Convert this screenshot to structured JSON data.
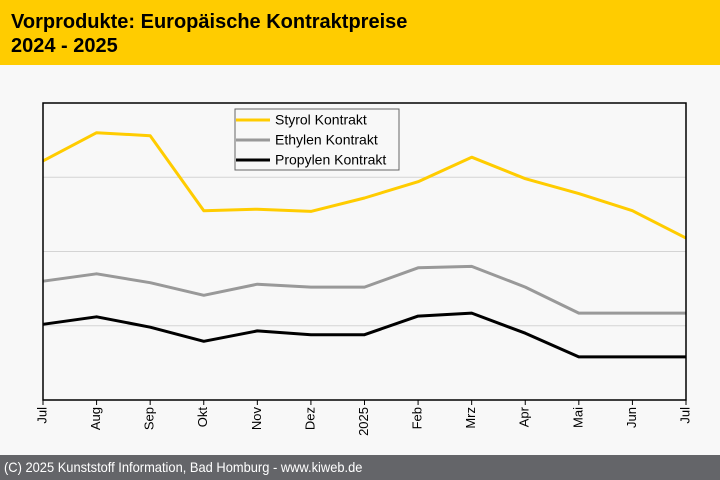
{
  "header": {
    "title_line1": "Vorprodukte: Europäische Kontraktpreise",
    "title_line2": "2024 - 2025"
  },
  "footer": {
    "text": "(C) 2025 Kunststoff Information, Bad Homburg - www.kiweb.de"
  },
  "chart_data": {
    "type": "line",
    "title": "Vorprodukte: Europäische Kontraktpreise 2024 - 2025",
    "xlabel": "",
    "ylabel": "",
    "y_unit_note": "no y-axis tick labels shown; values are relative index units read from gridlines (4 equal bands)",
    "ylim": [
      0,
      4
    ],
    "grid": true,
    "legend_position": "top-center",
    "categories": [
      "Jul",
      "Aug",
      "Sep",
      "Okt",
      "Nov",
      "Dez",
      "2025",
      "Feb",
      "Mrz",
      "Apr",
      "Mai",
      "Jun",
      "Jul"
    ],
    "series": [
      {
        "name": "Styrol Kontrakt",
        "color": "#ffcc00",
        "values": [
          3.22,
          3.6,
          3.56,
          2.55,
          2.57,
          2.54,
          2.72,
          2.94,
          3.27,
          2.98,
          2.78,
          2.55,
          2.18
        ]
      },
      {
        "name": "Ethylen Kontrakt",
        "color": "#999999",
        "values": [
          1.6,
          1.7,
          1.58,
          1.41,
          1.56,
          1.52,
          1.52,
          1.78,
          1.8,
          1.52,
          1.17,
          1.17,
          1.17
        ]
      },
      {
        "name": "Propylen Kontrakt",
        "color": "#000000",
        "values": [
          1.02,
          1.12,
          0.98,
          0.79,
          0.93,
          0.88,
          0.88,
          1.13,
          1.17,
          0.9,
          0.58,
          0.58,
          0.58
        ]
      }
    ]
  }
}
